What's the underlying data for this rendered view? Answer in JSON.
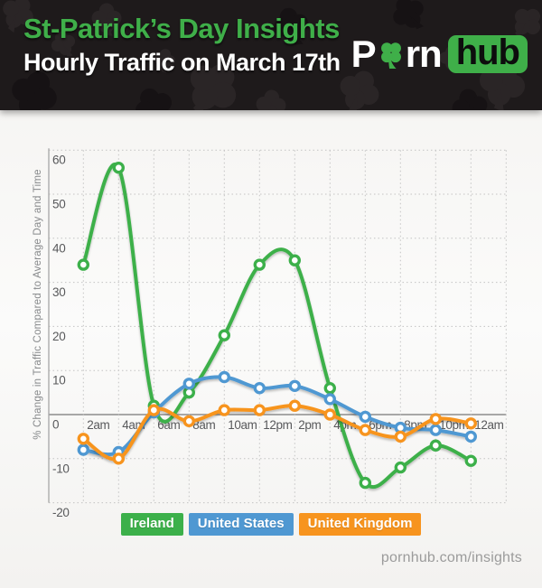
{
  "header": {
    "title": "St-Patrick’s Day Insights",
    "subtitle": "Hourly Traffic on March 17th",
    "logo": {
      "part1": "P",
      "clover_icon": "four-leaf-clover",
      "part2": "rn",
      "part3": "hub"
    },
    "background_color": "#1e1a1b",
    "title_color": "#3faf49"
  },
  "chart_data": {
    "type": "line",
    "curve": "spline",
    "categories": [
      "2am",
      "4am",
      "6am",
      "8am",
      "10am",
      "12pm",
      "2pm",
      "4pm",
      "6pm",
      "8pm",
      "10pm",
      "12am"
    ],
    "series": [
      {
        "name": "Ireland",
        "color": "#3cb04a",
        "values": [
          34,
          56,
          2,
          5,
          18,
          34,
          35,
          6,
          -15.5,
          -12,
          -7,
          -10.5
        ]
      },
      {
        "name": "United States",
        "color": "#4f98d2",
        "values": [
          -8,
          -8.5,
          0.5,
          7,
          8.5,
          6,
          6.5,
          3.5,
          -0.5,
          -3,
          -3.5,
          -5
        ]
      },
      {
        "name": "United Kingdom",
        "color": "#f7941e",
        "values": [
          -5.5,
          -10,
          1,
          -1.5,
          1,
          1,
          2,
          0,
          -3.5,
          -5,
          -1,
          -2
        ]
      }
    ],
    "ylabel": "% Change in Traffic Compared to Average Day and Time",
    "xlabel": "",
    "title": "",
    "ylim": [
      -20,
      60
    ],
    "yticks": [
      60,
      50,
      40,
      30,
      20,
      10,
      0,
      -10,
      -20
    ],
    "grid": true,
    "gridline_style": "dotted",
    "zero_line": true,
    "marker": "circle-white-center",
    "legend_position": "bottom"
  },
  "footer": {
    "site_text": "pornhub.com/insights"
  }
}
